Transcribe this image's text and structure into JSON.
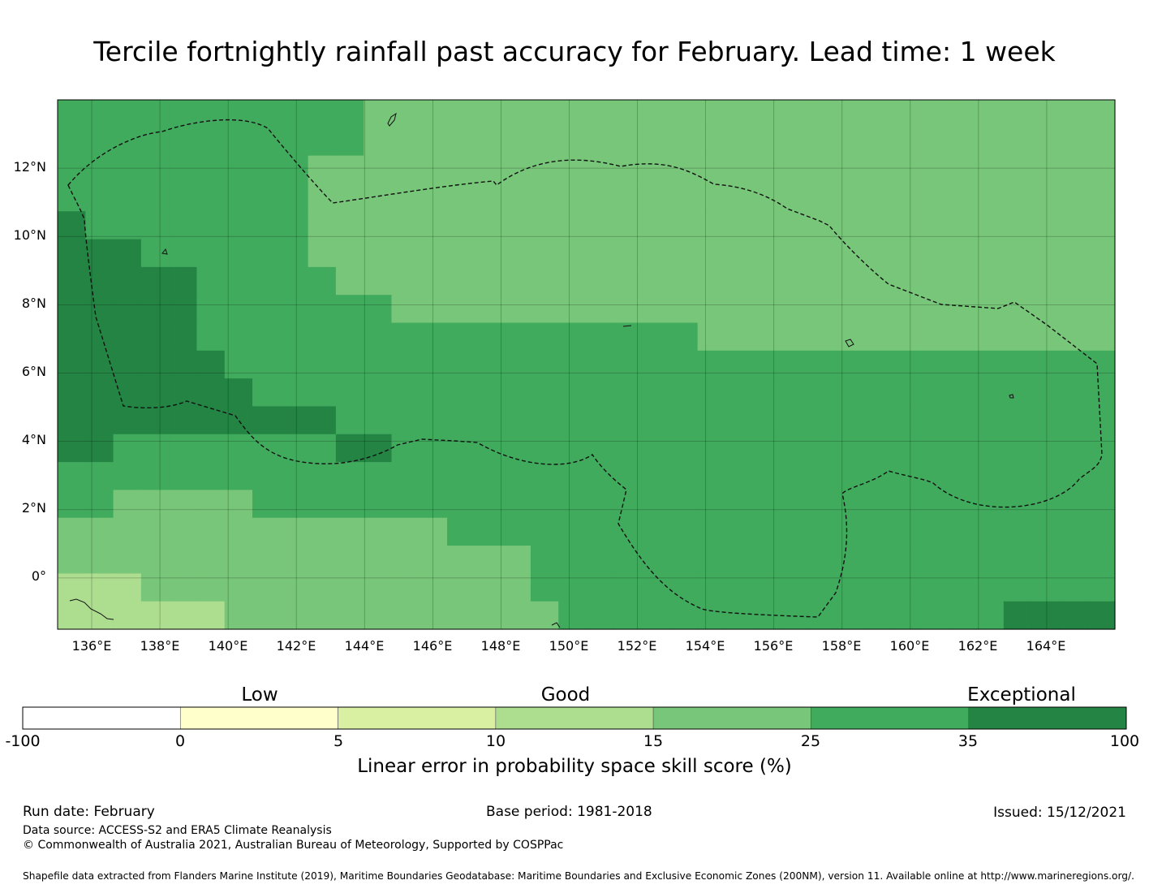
{
  "title": "Tercile fortnightly rainfall past accuracy for February. Lead time: 1 week",
  "lat_ticks": [
    "12°N",
    "10°N",
    "8°N",
    "6°N",
    "4°N",
    "2°N",
    "0°"
  ],
  "lon_ticks": [
    "136°E",
    "138°E",
    "140°E",
    "142°E",
    "144°E",
    "146°E",
    "148°E",
    "150°E",
    "152°E",
    "154°E",
    "156°E",
    "158°E",
    "160°E",
    "162°E",
    "164°E"
  ],
  "chart_data": {
    "type": "heatmap",
    "title": "Tercile fortnightly rainfall past accuracy for February. Lead time: 1 week",
    "x_range_deg_east": [
      135,
      166
    ],
    "y_range_deg_north": [
      -1.5,
      14
    ],
    "cell_size_deg": 0.83,
    "value_meaning": "colour class index 0..7 (see colorbar boundaries)",
    "grid_rows": [
      "55555555555444444444444444444444444444",
      "55555555555444444444444444444444444444",
      "55555555544444444444444444444444444444",
      "55555555544444444444444444444444444444",
      "65555555544444444444444444444444444444",
      "66655555544444444444444444444444444444",
      "66666555554444444444444444444444444444",
      "66666555555544444444444444444444444444",
      "66666555555555555555555444444444444444",
      "66666655555555555555555555555555555555",
      "66666665555555555555555555555555555555",
      "66666666665555555555555555555555555555",
      "66555555556655555555555555555555555555",
      "55555555555555555555555555555555555555",
      "55444445555555555555555555555555555555",
      "44444444444444555555555555555555555555",
      "44444444444444444555555555555555555555",
      "33344444444444444555555555555555555555",
      "33333344444444444455555555555555556666"
    ],
    "colorbar": {
      "boundaries": [
        "-100",
        "0",
        "5",
        "10",
        "15",
        "25",
        "35",
        "100"
      ],
      "colors": [
        "#ffffff",
        "#ffffcc",
        "#d9f0a3",
        "#addd8e",
        "#78c679",
        "#41ab5d",
        "#238443"
      ],
      "category_labels": [
        "Low",
        "Good",
        "Exceptional"
      ],
      "label": "Linear error in probability space skill score (%)"
    }
  },
  "footer": {
    "run_date": "Run date: February",
    "base_period": "Base period: 1981-2018",
    "issued": "Issued: 15/12/2021",
    "data_source": "Data source: ACCESS-S2 and ERA5 Climate Reanalysis",
    "copyright": "© Commonwealth of Australia 2021, Australian Bureau of Meteorology, Supported by COSPPac",
    "shapefile": "Shapefile data extracted from Flanders Marine Institute (2019), Maritime Boundaries Geodatabase: Maritime Boundaries and Exclusive Economic Zones (200NM), version 11. Available online at http://www.marineregions.org/."
  }
}
